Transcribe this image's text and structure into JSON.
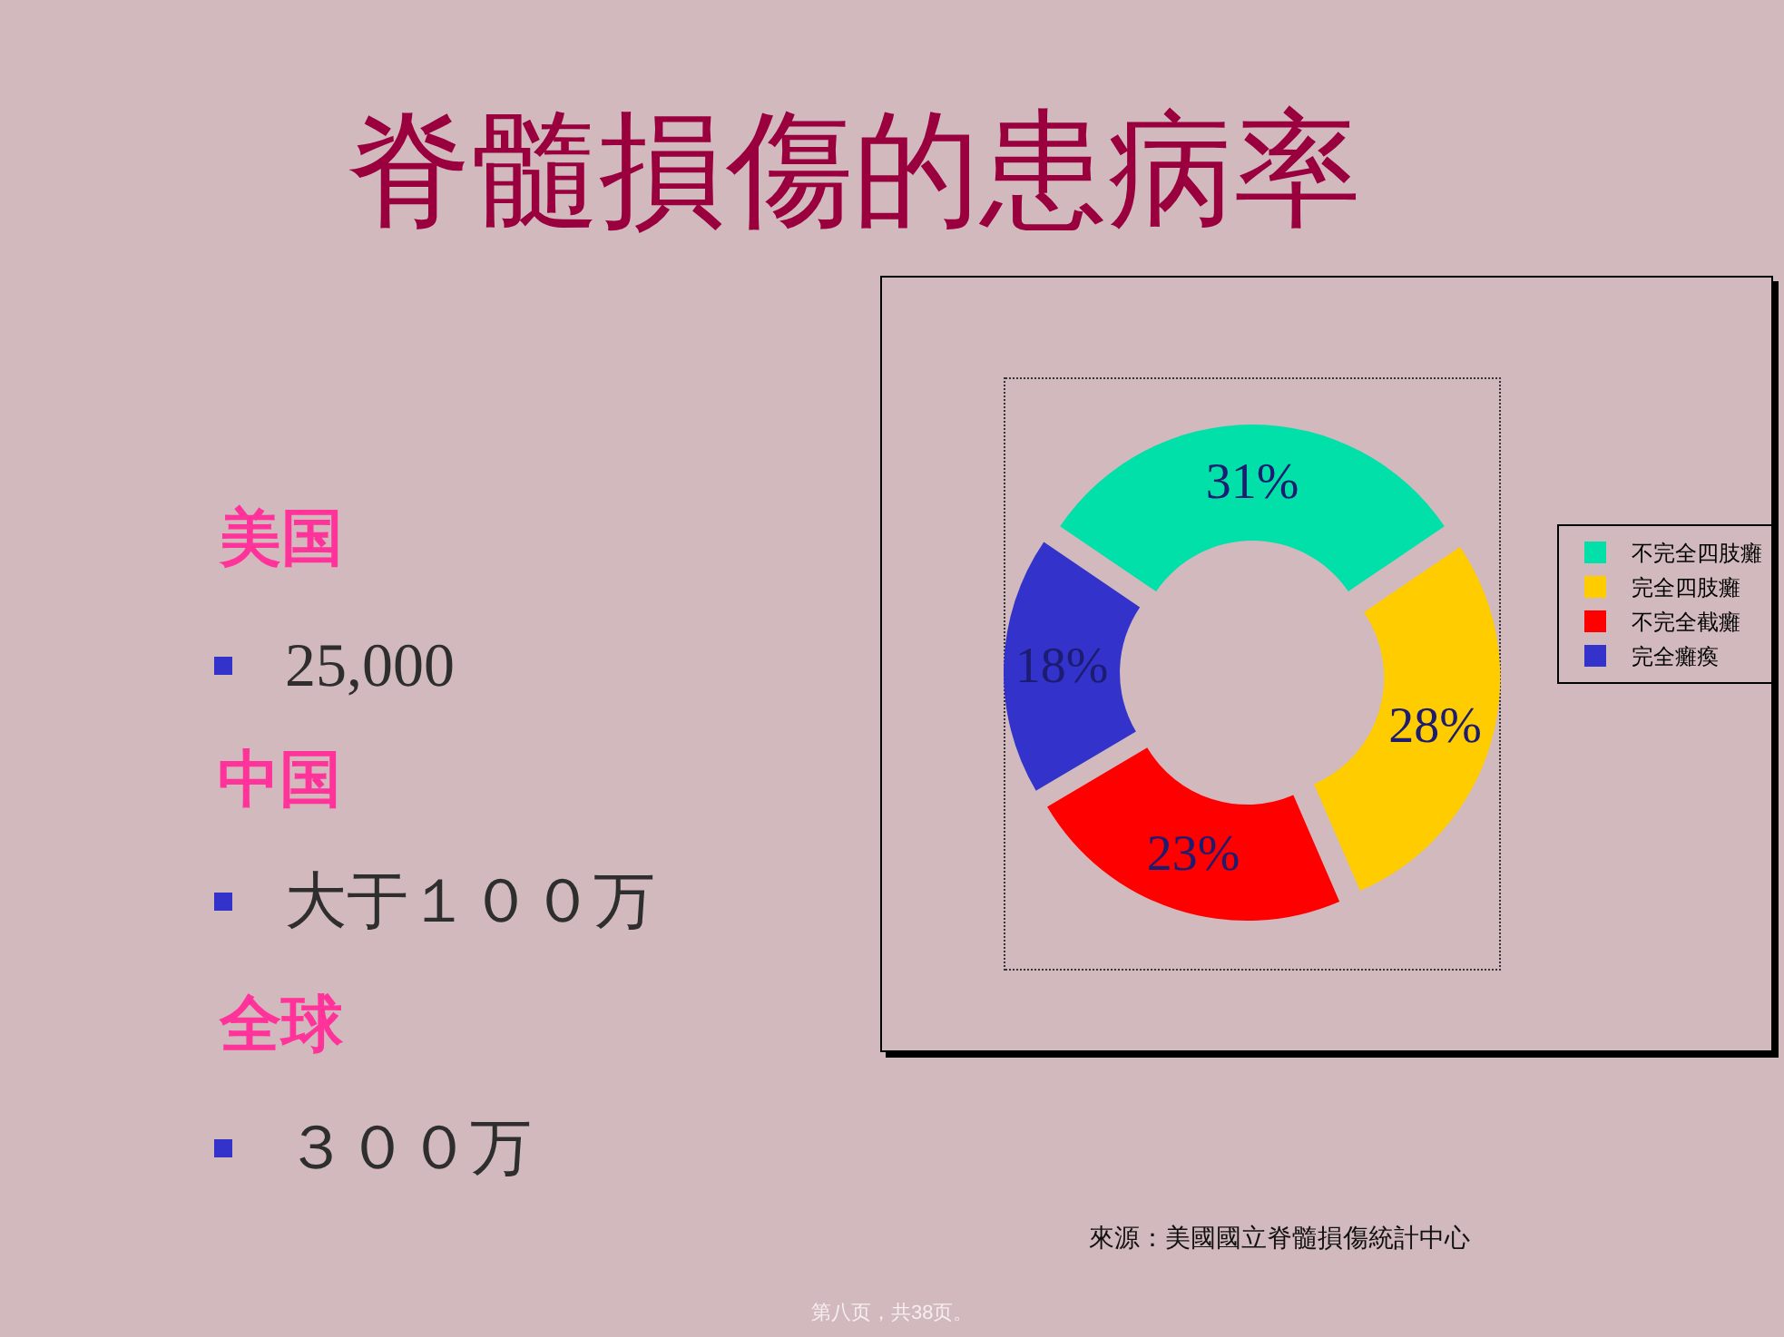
{
  "chart_data": {
    "type": "donut",
    "title": "脊髓損傷的患病率",
    "categories": [
      "不完全四肢癱",
      "完全四肢癱",
      "不完全截癱",
      "完全癱瘓"
    ],
    "values": [
      31,
      28,
      23,
      18
    ],
    "colors": [
      "#00e0a8",
      "#ffcc00",
      "#ff0000",
      "#3333cc"
    ],
    "value_labels": [
      "31%",
      "28%",
      "23%",
      "18%"
    ],
    "legend": "right",
    "annotations": [
      "美国",
      "25,000",
      "中国",
      "大于１００万",
      "全球",
      "３００万",
      "來源：美國國立脊髓損傷統計中心",
      "第八页，共38页。"
    ]
  }
}
